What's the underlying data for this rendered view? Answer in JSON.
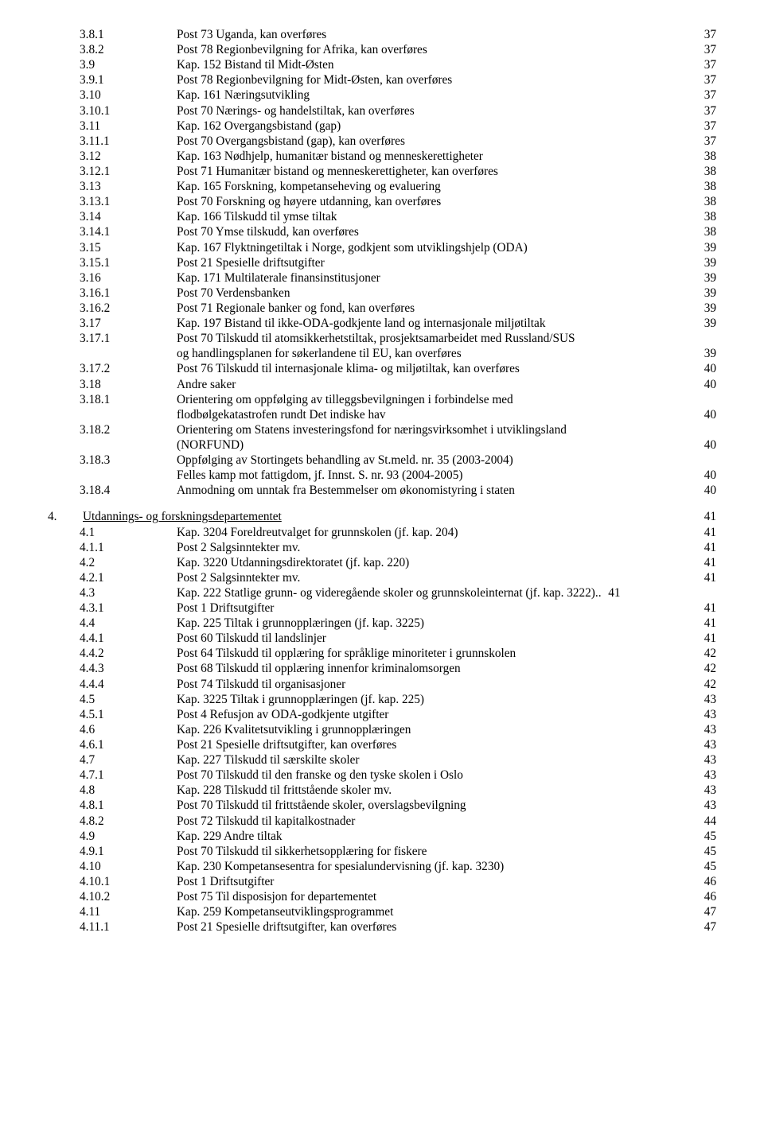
{
  "font": {
    "family": "Times New Roman",
    "size_pt": 11.5,
    "color": "#000000"
  },
  "background_color": "#ffffff",
  "entries": [
    {
      "num": "3.8.1",
      "lvl": 2,
      "title": "Post 73 Uganda, kan overføres",
      "page": 37
    },
    {
      "num": "3.8.2",
      "lvl": 2,
      "title": "Post 78 Regionbevilgning for Afrika, kan overføres",
      "page": 37
    },
    {
      "num": "3.9",
      "lvl": 1,
      "title": "Kap. 152 Bistand til Midt-Østen",
      "page": 37
    },
    {
      "num": "3.9.1",
      "lvl": 2,
      "title": "Post 78 Regionbevilgning for Midt-Østen, kan overføres",
      "page": 37
    },
    {
      "num": "3.10",
      "lvl": 1,
      "title": "Kap. 161 Næringsutvikling",
      "page": 37
    },
    {
      "num": "3.10.1",
      "lvl": 2,
      "title": "Post 70 Nærings- og handelstiltak, kan overføres",
      "page": 37
    },
    {
      "num": "3.11",
      "lvl": 1,
      "title": "Kap. 162 Overgangsbistand (gap)",
      "page": 37
    },
    {
      "num": "3.11.1",
      "lvl": 2,
      "title": "Post 70 Overgangsbistand (gap), kan overføres",
      "page": 37
    },
    {
      "num": "3.12",
      "lvl": 1,
      "title": "Kap. 163 Nødhjelp, humanitær bistand og menneskerettigheter",
      "page": 38
    },
    {
      "num": "3.12.1",
      "lvl": 2,
      "title": "Post 71 Humanitær bistand og menneskerettigheter, kan overføres",
      "page": 38
    },
    {
      "num": "3.13",
      "lvl": 1,
      "title": "Kap. 165 Forskning, kompetanseheving og evaluering",
      "page": 38
    },
    {
      "num": "3.13.1",
      "lvl": 2,
      "title": "Post 70 Forskning og høyere utdanning, kan overføres",
      "page": 38
    },
    {
      "num": "3.14",
      "lvl": 1,
      "title": "Kap. 166 Tilskudd til ymse tiltak",
      "page": 38
    },
    {
      "num": "3.14.1",
      "lvl": 2,
      "title": "Post 70 Ymse tilskudd, kan overføres",
      "page": 38
    },
    {
      "num": "3.15",
      "lvl": 1,
      "title": "Kap. 167 Flyktningetiltak i Norge, godkjent som utviklingshjelp (ODA)",
      "page": 39
    },
    {
      "num": "3.15.1",
      "lvl": 2,
      "title": "Post 21 Spesielle driftsutgifter",
      "page": 39
    },
    {
      "num": "3.16",
      "lvl": 1,
      "title": "Kap. 171 Multilaterale finansinstitusjoner",
      "page": 39
    },
    {
      "num": "3.16.1",
      "lvl": 2,
      "title": "Post 70 Verdensbanken",
      "page": 39
    },
    {
      "num": "3.16.2",
      "lvl": 2,
      "title": "Post 71 Regionale banker og fond, kan overføres",
      "page": 39
    },
    {
      "num": "3.17",
      "lvl": 1,
      "title": "Kap. 197 Bistand til ikke-ODA-godkjente land og internasjonale miljøtiltak",
      "page": 39
    },
    {
      "num": "3.17.1",
      "lvl": 2,
      "title": "Post 70 Tilskudd til atomsikkerhetstiltak, prosjektsamarbeidet med Russland/SUS",
      "cont": "og handlingsplanen for søkerlandene til EU, kan overføres",
      "page": 39
    },
    {
      "num": "3.17.2",
      "lvl": 2,
      "title": "Post 76 Tilskudd til internasjonale klima- og miljøtiltak, kan overføres",
      "page": 40
    },
    {
      "num": "3.18",
      "lvl": 1,
      "title": "Andre saker",
      "page": 40
    },
    {
      "num": "3.18.1",
      "lvl": 2,
      "title": "Orientering om oppfølging av tilleggsbevilgningen i forbindelse med",
      "cont": "flodbølgekatastrofen rundt Det indiske hav",
      "page": 40
    },
    {
      "num": "3.18.2",
      "lvl": 2,
      "title": "Orientering om Statens investeringsfond for næringsvirksomhet i utviklingsland",
      "cont": "(NORFUND)",
      "page": 40
    },
    {
      "num": "3.18.3",
      "lvl": 2,
      "title": "Oppfølging av Stortingets behandling av St.meld. nr. 35 (2003-2004)",
      "cont": "Felles kamp mot fattigdom, jf. Innst. S. nr. 93 (2004-2005)",
      "page": 40
    },
    {
      "num": "3.18.4",
      "lvl": 2,
      "title": "Anmodning om unntak fra Bestemmelser om økonomistyring i staten",
      "page": 40
    },
    {
      "spacer": true
    },
    {
      "num": "4.",
      "lvl": 0,
      "title": "Utdannings- og forskningsdepartementet",
      "underline": true,
      "page": 41
    },
    {
      "num": "4.1",
      "lvl": 1,
      "title": "Kap. 3204 Foreldreutvalget for grunnskolen (jf. kap. 204)",
      "page": 41
    },
    {
      "num": "4.1.1",
      "lvl": 2,
      "title": "Post 2 Salgsinntekter mv.",
      "page": 41
    },
    {
      "num": "4.2",
      "lvl": 1,
      "title": "Kap. 3220 Utdanningsdirektoratet (jf. kap. 220)",
      "page": 41
    },
    {
      "num": "4.2.1",
      "lvl": 2,
      "title": "Post 2 Salgsinntekter mv.",
      "page": 41
    },
    {
      "num": "4.3",
      "lvl": 1,
      "title": "Kap. 222 Statlige grunn- og videregående skoler og grunnskoleinternat (jf. kap. 3222)",
      "tail": "..",
      "page": 41
    },
    {
      "num": "4.3.1",
      "lvl": 2,
      "title": "Post 1 Driftsutgifter",
      "page": 41
    },
    {
      "num": "4.4",
      "lvl": 1,
      "title": "Kap. 225 Tiltak i grunnopplæringen (jf. kap. 3225)",
      "page": 41
    },
    {
      "num": "4.4.1",
      "lvl": 2,
      "title": "Post 60 Tilskudd til landslinjer",
      "page": 41
    },
    {
      "num": "4.4.2",
      "lvl": 2,
      "title": "Post 64 Tilskudd til opplæring for språklige minoriteter i grunnskolen",
      "page": 42
    },
    {
      "num": "4.4.3",
      "lvl": 2,
      "title": "Post 68 Tilskudd til opplæring innenfor kriminalomsorgen",
      "page": 42
    },
    {
      "num": "4.4.4",
      "lvl": 2,
      "title": "Post 74 Tilskudd til organisasjoner",
      "page": 42
    },
    {
      "num": "4.5",
      "lvl": 1,
      "title": "Kap. 3225 Tiltak i grunnopplæringen (jf. kap. 225)",
      "page": 43
    },
    {
      "num": "4.5.1",
      "lvl": 2,
      "title": "Post 4 Refusjon av ODA-godkjente utgifter",
      "page": 43
    },
    {
      "num": "4.6",
      "lvl": 1,
      "title": "Kap. 226 Kvalitetsutvikling i grunnopplæringen",
      "page": 43
    },
    {
      "num": "4.6.1",
      "lvl": 2,
      "title": "Post 21 Spesielle driftsutgifter, kan overføres",
      "page": 43
    },
    {
      "num": "4.7",
      "lvl": 1,
      "title": "Kap. 227 Tilskudd til særskilte skoler",
      "page": 43
    },
    {
      "num": "4.7.1",
      "lvl": 2,
      "title": "Post 70 Tilskudd til den franske og den tyske skolen i Oslo",
      "page": 43
    },
    {
      "num": "4.8",
      "lvl": 1,
      "title": "Kap. 228 Tilskudd til frittstående skoler mv.",
      "page": 43
    },
    {
      "num": "4.8.1",
      "lvl": 2,
      "title": "Post 70 Tilskudd til frittstående skoler, overslagsbevilgning",
      "page": 43
    },
    {
      "num": "4.8.2",
      "lvl": 2,
      "title": "Post 72 Tilskudd til kapitalkostnader",
      "page": 44
    },
    {
      "num": "4.9",
      "lvl": 1,
      "title": "Kap. 229 Andre tiltak",
      "page": 45
    },
    {
      "num": "4.9.1",
      "lvl": 2,
      "title": "Post 70 Tilskudd til sikkerhetsopplæring for fiskere",
      "page": 45
    },
    {
      "num": "4.10",
      "lvl": 1,
      "title": "Kap. 230 Kompetansesentra for spesialundervisning (jf. kap. 3230)",
      "page": 45
    },
    {
      "num": "4.10.1",
      "lvl": 2,
      "title": "Post 1 Driftsutgifter",
      "page": 46
    },
    {
      "num": "4.10.2",
      "lvl": 2,
      "title": "Post 75 Til disposisjon for departementet",
      "page": 46
    },
    {
      "num": "4.11",
      "lvl": 1,
      "title": "Kap. 259 Kompetanseutviklingsprogrammet",
      "page": 47
    },
    {
      "num": "4.11.1",
      "lvl": 2,
      "title": "Post 21 Spesielle driftsutgifter, kan overføres",
      "page": 47
    }
  ]
}
